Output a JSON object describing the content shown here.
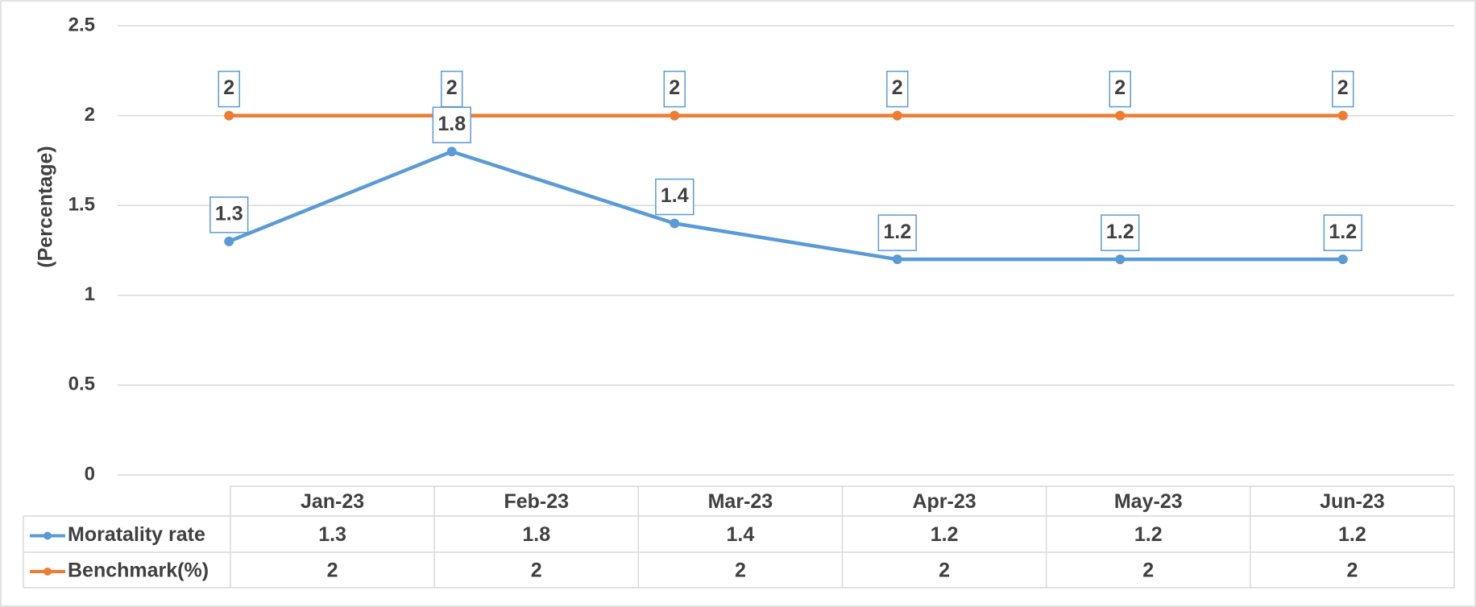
{
  "chart_data": {
    "type": "line",
    "y_label": "(Percentage)",
    "categories": [
      "Jan-23",
      "Feb-23",
      "Mar-23",
      "Apr-23",
      "May-23",
      "Jun-23"
    ],
    "series": [
      {
        "name": "Moratality rate",
        "color": "#5b9bd5",
        "values": [
          1.3,
          1.8,
          1.4,
          1.2,
          1.2,
          1.2
        ]
      },
      {
        "name": "Benchmark(%)",
        "color": "#ed7d31",
        "values": [
          2,
          2,
          2,
          2,
          2,
          2
        ]
      }
    ],
    "ylim": [
      0,
      2.5
    ],
    "yticks": [
      0,
      0.5,
      1,
      1.5,
      2,
      2.5
    ],
    "grid": true,
    "data_table": true
  }
}
